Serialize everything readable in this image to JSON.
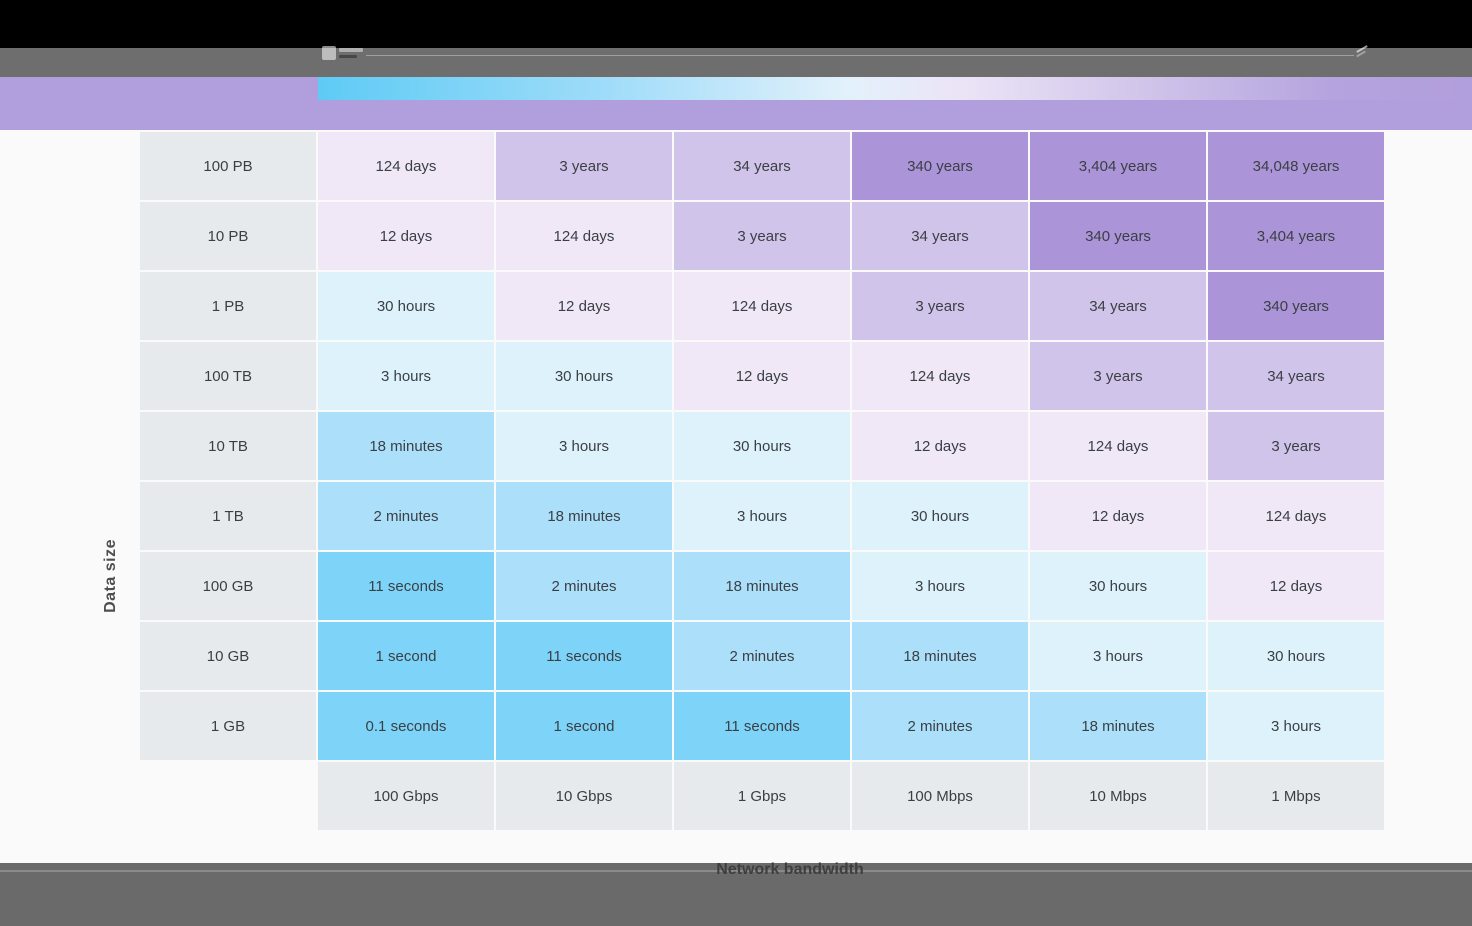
{
  "chrome": {
    "titlebar_color": "#000000",
    "toolbar_color": "#6E6E6E",
    "footer_color": "#6A6A6A"
  },
  "header": {
    "band_color": "#B19EDC",
    "legend_gradient_stops": [
      "#5ECBF5",
      "#9FDCF9",
      "#E3F1FB",
      "#EBE4F6",
      "#D5CAEC",
      "#B4A3DE",
      "#B19EDC"
    ]
  },
  "axes": {
    "y_label": "Data size",
    "x_label": "Network bandwidth"
  },
  "table": {
    "row_labels": [
      "100 PB",
      "10 PB",
      "1 PB",
      "100 TB",
      "10 TB",
      "1 TB",
      "100 GB",
      "10 GB",
      "1 GB"
    ],
    "column_labels": [
      "100 Gbps",
      "10 Gbps",
      "1 Gbps",
      "100 Mbps",
      "10 Mbps",
      "1 Mbps"
    ],
    "cells": [
      [
        "124 days",
        "3 years",
        "34 years",
        "340 years",
        "3,404 years",
        "34,048 years"
      ],
      [
        "12 days",
        "124 days",
        "3 years",
        "34 years",
        "340 years",
        "3,404 years"
      ],
      [
        "30 hours",
        "12 days",
        "124 days",
        "3 years",
        "34 years",
        "340 years"
      ],
      [
        "3 hours",
        "30 hours",
        "12 days",
        "124 days",
        "3 years",
        "34 years"
      ],
      [
        "18 minutes",
        "3 hours",
        "30 hours",
        "12 days",
        "124 days",
        "3 years"
      ],
      [
        "2 minutes",
        "18 minutes",
        "3 hours",
        "30 hours",
        "12 days",
        "124 days"
      ],
      [
        "11 seconds",
        "2 minutes",
        "18 minutes",
        "3 hours",
        "30 hours",
        "12 days"
      ],
      [
        "1 second",
        "11 seconds",
        "2 minutes",
        "18 minutes",
        "3 hours",
        "30 hours"
      ],
      [
        "0.1 seconds",
        "1 second",
        "11 seconds",
        "2 minutes",
        "18 minutes",
        "3 hours"
      ]
    ]
  },
  "palette": {
    "seconds": "#7ED4F8",
    "minutes": "#ACE0FA",
    "hours": "#DEF2FC",
    "days": "#F0E8F7",
    "years_short": "#D1C4EA",
    "years_long": "#AC94D8",
    "header_cell_bg": "#E7EAED",
    "cell_text": "#3A3F44"
  },
  "chart_data": {
    "type": "heatmap",
    "title": "",
    "xlabel": "Network bandwidth",
    "ylabel": "Data size",
    "x_categories": [
      "100 Gbps",
      "10 Gbps",
      "1 Gbps",
      "100 Mbps",
      "10 Mbps",
      "1 Mbps"
    ],
    "y_categories": [
      "100 PB",
      "10 PB",
      "1 PB",
      "100 TB",
      "10 TB",
      "1 TB",
      "100 GB",
      "10 GB",
      "1 GB"
    ],
    "values": [
      [
        "124 days",
        "3 years",
        "34 years",
        "340 years",
        "3,404 years",
        "34,048 years"
      ],
      [
        "12 days",
        "124 days",
        "3 years",
        "34 years",
        "340 years",
        "3,404 years"
      ],
      [
        "30 hours",
        "12 days",
        "124 days",
        "3 years",
        "34 years",
        "340 years"
      ],
      [
        "3 hours",
        "30 hours",
        "12 days",
        "124 days",
        "3 years",
        "34 years"
      ],
      [
        "18 minutes",
        "3 hours",
        "30 hours",
        "12 days",
        "124 days",
        "3 years"
      ],
      [
        "2 minutes",
        "18 minutes",
        "3 hours",
        "30 hours",
        "12 days",
        "124 days"
      ],
      [
        "11 seconds",
        "2 minutes",
        "18 minutes",
        "3 hours",
        "30 hours",
        "12 days"
      ],
      [
        "1 second",
        "11 seconds",
        "2 minutes",
        "18 minutes",
        "3 hours",
        "30 hours"
      ],
      [
        "0.1 seconds",
        "1 second",
        "11 seconds",
        "2 minutes",
        "18 minutes",
        "3 hours"
      ]
    ],
    "legend_position": "top",
    "color_scale": "fast=blue (#7ED4F8) to slow=purple (#AC94D8)"
  }
}
